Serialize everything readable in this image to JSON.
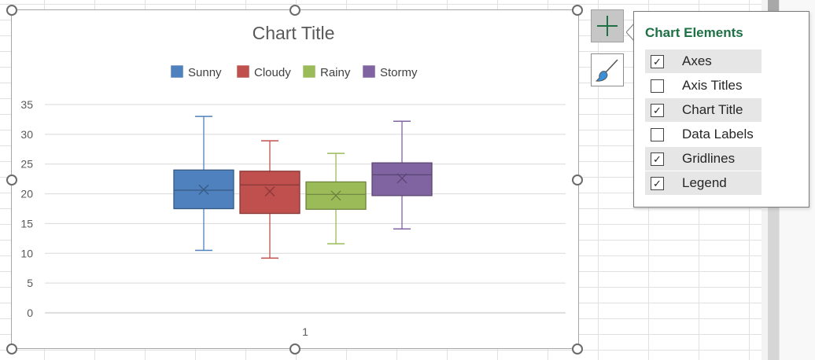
{
  "chart_data": {
    "type": "box",
    "title": "Chart Title",
    "xlabel": "",
    "ylabel": "",
    "ylim": [
      0,
      35
    ],
    "yticks": [
      "0",
      "5",
      "10",
      "15",
      "20",
      "25",
      "30",
      "35"
    ],
    "categories": [
      "1"
    ],
    "grid": true,
    "legend_position": "top",
    "series": [
      {
        "name": "Sunny",
        "color": "#4e81bd",
        "min": 10.5,
        "q1": 17.5,
        "median": 20.6,
        "mean": 20.7,
        "q3": 24.0,
        "max": 33.0
      },
      {
        "name": "Cloudy",
        "color": "#c0504d",
        "min": 9.2,
        "q1": 16.7,
        "median": 21.5,
        "mean": 20.4,
        "q3": 23.8,
        "max": 28.9
      },
      {
        "name": "Rainy",
        "color": "#9bbb59",
        "min": 11.6,
        "q1": 17.4,
        "median": 19.9,
        "mean": 19.7,
        "q3": 22.0,
        "max": 26.8
      },
      {
        "name": "Stormy",
        "color": "#8064a2",
        "min": 14.1,
        "q1": 19.7,
        "median": 23.2,
        "mean": 22.6,
        "q3": 25.2,
        "max": 32.2
      }
    ]
  },
  "chart_elements_panel": {
    "title": "Chart Elements",
    "items": [
      {
        "label": "Axes",
        "checked": true
      },
      {
        "label": "Axis Titles",
        "checked": false
      },
      {
        "label": "Chart Title",
        "checked": true
      },
      {
        "label": "Data Labels",
        "checked": false
      },
      {
        "label": "Gridlines",
        "checked": true
      },
      {
        "label": "Legend",
        "checked": true
      }
    ]
  },
  "side_buttons": [
    {
      "name": "chart-elements-button",
      "icon": "plus-icon",
      "active": true
    },
    {
      "name": "chart-styles-button",
      "icon": "brush-icon",
      "active": false
    }
  ],
  "colors": {
    "accent_green": "#1e7145",
    "gridline": "#d9d9d9",
    "axis_text": "#595959"
  }
}
